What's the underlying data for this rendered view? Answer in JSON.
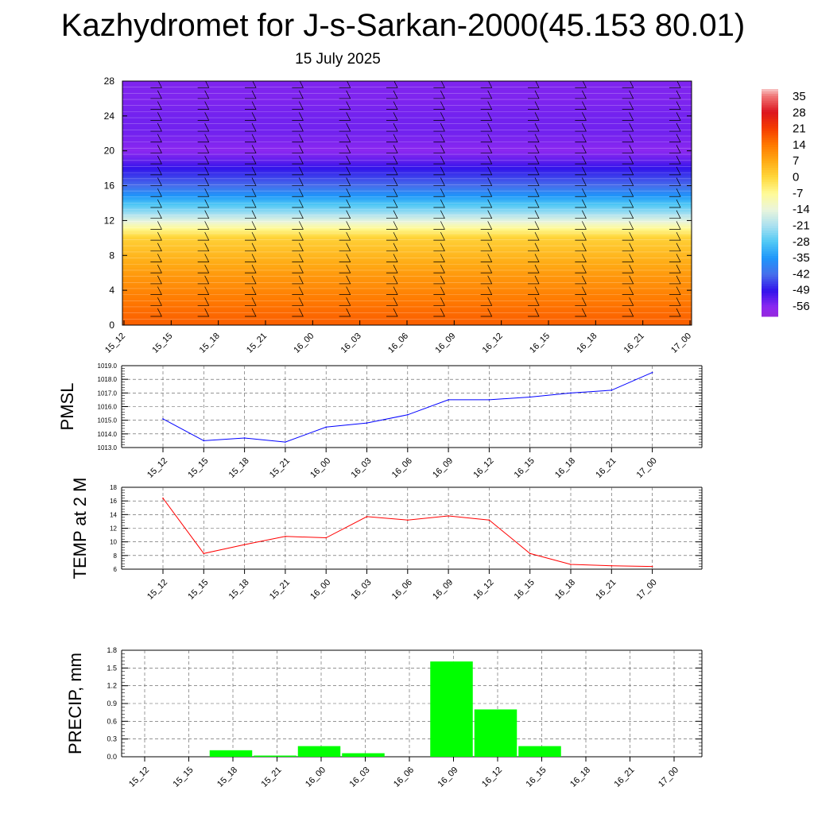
{
  "title": "Kazhydromet for J-s-Sarkan-2000(45.153 80.01)",
  "subtitle": "15 July 2025",
  "time_labels": [
    "15_12",
    "15_15",
    "15_18",
    "15_21",
    "16_00",
    "16_03",
    "16_06",
    "16_09",
    "16_12",
    "16_15",
    "16_18",
    "16_21",
    "17_00"
  ],
  "colors": {
    "pmsl_line": "#0000ff",
    "temp_line": "#ff0000",
    "precip_bar": "#00ff00",
    "barb": "#000000"
  },
  "chart_data": [
    {
      "type": "heatmap",
      "name": "cross-section",
      "x": [
        "15_12",
        "15_15",
        "15_18",
        "15_21",
        "16_00",
        "16_03",
        "16_06",
        "16_09",
        "16_12",
        "16_15",
        "16_18",
        "16_21",
        "17_00"
      ],
      "yticks": [
        "0",
        "4",
        "8",
        "12",
        "16",
        "20",
        "24",
        "28"
      ],
      "ylim": [
        0,
        28
      ],
      "color_scale": {
        "labels": [
          "35",
          "28",
          "21",
          "14",
          "7",
          "0",
          "-7",
          "-14",
          "-21",
          "-28",
          "-35",
          "-42",
          "-49",
          "-56"
        ],
        "range": [
          -60,
          38
        ]
      },
      "temperature_profile": {
        "levels": [
          0,
          2,
          4,
          6,
          8,
          10,
          11,
          12,
          13,
          14,
          15,
          16,
          18,
          19,
          20,
          21,
          22,
          24,
          26,
          28
        ],
        "values": [
          17,
          15,
          12,
          9,
          5,
          1,
          -6,
          -15,
          -23,
          -29,
          -36,
          -42,
          -49,
          -53,
          -56,
          -55,
          -54,
          -54,
          -55,
          -55
        ]
      },
      "wind_barbs": "black wind barbs at every time step and level"
    },
    {
      "type": "line",
      "name": "PMSL",
      "ylabel": "PMSL",
      "x": [
        "15_12",
        "15_15",
        "15_18",
        "15_21",
        "16_00",
        "16_03",
        "16_06",
        "16_09",
        "16_12",
        "16_15",
        "16_18",
        "16_21",
        "17_00"
      ],
      "yticks": [
        "1013.0",
        "1014.0",
        "1015.0",
        "1016.0",
        "1017.0",
        "1018.0",
        "1019.0"
      ],
      "ylim": [
        1013.0,
        1019.0
      ],
      "values": [
        1015.1,
        1013.5,
        1013.7,
        1013.4,
        1014.5,
        1014.8,
        1015.4,
        1016.5,
        1016.5,
        1016.7,
        1017.0,
        1017.2,
        1018.5
      ],
      "grid": true
    },
    {
      "type": "line",
      "name": "TEMP at 2 M",
      "ylabel": "TEMP at 2 M",
      "x": [
        "15_12",
        "15_15",
        "15_18",
        "15_21",
        "16_00",
        "16_03",
        "16_06",
        "16_09",
        "16_12",
        "16_15",
        "16_18",
        "16_21",
        "17_00"
      ],
      "yticks": [
        "6",
        "8",
        "10",
        "12",
        "14",
        "16",
        "18"
      ],
      "ylim": [
        6,
        18
      ],
      "values": [
        16.4,
        8.3,
        9.6,
        10.8,
        10.6,
        13.7,
        13.2,
        13.8,
        13.2,
        8.3,
        6.7,
        6.5,
        6.4
      ],
      "grid": true
    },
    {
      "type": "bar",
      "name": "PRECIP, mm",
      "ylabel": "PRECIP, mm",
      "categories": [
        "15_12",
        "15_15",
        "15_18",
        "15_21",
        "16_00",
        "16_03",
        "16_06",
        "16_09",
        "16_12",
        "16_15",
        "16_18",
        "16_21",
        "17_00"
      ],
      "yticks": [
        "0.0",
        "0.3",
        "0.6",
        "0.9",
        "1.2",
        "1.5",
        "1.8"
      ],
      "ylim": [
        0,
        1.8
      ],
      "values": [
        0,
        0.11,
        0.02,
        0.18,
        0.06,
        0,
        1.61,
        0.8,
        0.18,
        0,
        0,
        0,
        0
      ],
      "grid": true
    }
  ]
}
